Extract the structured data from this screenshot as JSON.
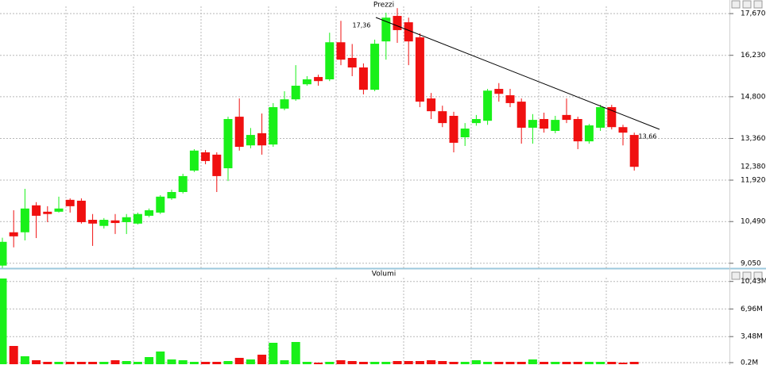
{
  "chart_data": [
    {
      "type": "candlestick",
      "title": "Prezzi",
      "open": [
        8.97,
        10.12,
        10.12,
        11.05,
        10.83,
        10.83,
        11.24,
        11.21,
        10.55,
        10.34,
        10.53,
        10.47,
        10.42,
        10.69,
        10.8,
        11.29,
        11.51,
        12.25,
        12.88,
        12.8,
        12.33,
        14.11,
        13.12,
        13.54,
        13.15,
        14.39,
        14.71,
        15.23,
        15.48,
        15.4,
        16.68,
        16.14,
        15.81,
        15.04,
        16.71,
        17.59,
        17.37,
        16.85,
        14.74,
        14.3,
        14.14,
        13.4,
        13.89,
        13.97,
        15.07,
        14.85,
        14.63,
        13.73,
        14.03,
        13.62,
        14.17,
        14.03,
        13.26,
        13.73,
        14.44,
        13.75,
        13.48
      ],
      "high": [
        9.93,
        10.88,
        11.62,
        11.16,
        11.02,
        11.35,
        11.29,
        11.29,
        10.75,
        10.61,
        10.75,
        10.75,
        10.8,
        10.94,
        11.4,
        11.59,
        12.14,
        12.99,
        12.96,
        12.88,
        14.11,
        14.74,
        13.72,
        14.22,
        14.58,
        14.99,
        15.89,
        15.51,
        15.56,
        17.01,
        17.42,
        16.62,
        15.95,
        16.77,
        17.7,
        17.86,
        17.53,
        16.99,
        14.93,
        14.49,
        14.28,
        13.89,
        14.17,
        15.07,
        15.27,
        15.07,
        14.74,
        14.2,
        14.25,
        14.14,
        14.74,
        14.11,
        13.86,
        14.52,
        14.52,
        13.83,
        13.56
      ],
      "low": [
        8.89,
        9.6,
        9.84,
        9.92,
        10.47,
        10.8,
        10.8,
        10.42,
        9.65,
        10.25,
        10.06,
        10.06,
        10.39,
        10.64,
        10.75,
        11.24,
        11.46,
        12.2,
        12.47,
        11.51,
        11.89,
        12.94,
        13.02,
        12.8,
        13.07,
        14.33,
        14.66,
        15.18,
        15.18,
        15.34,
        15.89,
        15.51,
        14.88,
        14.99,
        16.08,
        16.66,
        15.89,
        14.44,
        14.03,
        13.75,
        12.88,
        13.1,
        13.8,
        13.83,
        14.63,
        14.44,
        13.18,
        13.18,
        13.56,
        13.54,
        13.89,
        12.99,
        13.18,
        13.62,
        13.67,
        13.12,
        12.25
      ],
      "close": [
        9.79,
        9.98,
        10.94,
        10.69,
        10.75,
        10.94,
        11.02,
        10.47,
        10.42,
        10.55,
        10.44,
        10.64,
        10.75,
        10.88,
        11.35,
        11.51,
        12.06,
        12.94,
        12.58,
        12.06,
        14.03,
        13.07,
        13.48,
        13.12,
        14.44,
        14.71,
        15.18,
        15.4,
        15.34,
        16.68,
        16.08,
        15.81,
        15.04,
        16.63,
        17.53,
        17.1,
        16.71,
        14.63,
        14.3,
        13.89,
        13.21,
        13.7,
        14.03,
        15.01,
        14.9,
        14.58,
        13.73,
        14.0,
        13.7,
        14.0,
        14.0,
        13.26,
        13.81,
        14.44,
        13.75,
        13.56,
        12.38
      ],
      "up_color": "#19f019",
      "down_color": "#f01010",
      "ylim": [
        8.88,
        17.92
      ],
      "yticks": [
        {
          "value": 9.05,
          "label": "9,050"
        },
        {
          "value": 10.49,
          "label": "10,490"
        },
        {
          "value": 11.92,
          "label": "11,920"
        },
        {
          "value": 13.36,
          "label": "13,360"
        },
        {
          "value": 14.8,
          "label": "14,800"
        },
        {
          "value": 16.23,
          "label": "16,230"
        },
        {
          "value": 17.67,
          "label": "17,670"
        }
      ],
      "last_price": {
        "value": 12.38,
        "label": "12,380"
      },
      "annotations": [
        "17,36",
        "13,66"
      ],
      "grid": true
    },
    {
      "type": "bar",
      "title": "Volumi",
      "values": [
        10.8,
        2.3,
        1.0,
        0.5,
        0.3,
        0.3,
        0.3,
        0.3,
        0.3,
        0.3,
        0.5,
        0.4,
        0.3,
        0.9,
        1.6,
        0.6,
        0.5,
        0.3,
        0.3,
        0.3,
        0.4,
        0.8,
        0.6,
        1.2,
        2.7,
        0.5,
        2.8,
        0.3,
        0.2,
        0.3,
        0.5,
        0.4,
        0.3,
        0.3,
        0.3,
        0.4,
        0.4,
        0.4,
        0.5,
        0.4,
        0.3,
        0.3,
        0.5,
        0.3,
        0.3,
        0.3,
        0.3,
        0.6,
        0.3,
        0.3,
        0.3,
        0.3,
        0.3,
        0.3,
        0.3,
        0.2,
        0.3
      ],
      "ylim": [
        -0.1,
        10.9
      ],
      "yticks": [
        {
          "value": 0.2,
          "label": "0,2M"
        },
        {
          "value": 3.48,
          "label": "3,48M"
        },
        {
          "value": 6.96,
          "label": "6,96M"
        },
        {
          "value": 10.43,
          "label": "10,43M"
        }
      ],
      "grid": true
    }
  ]
}
